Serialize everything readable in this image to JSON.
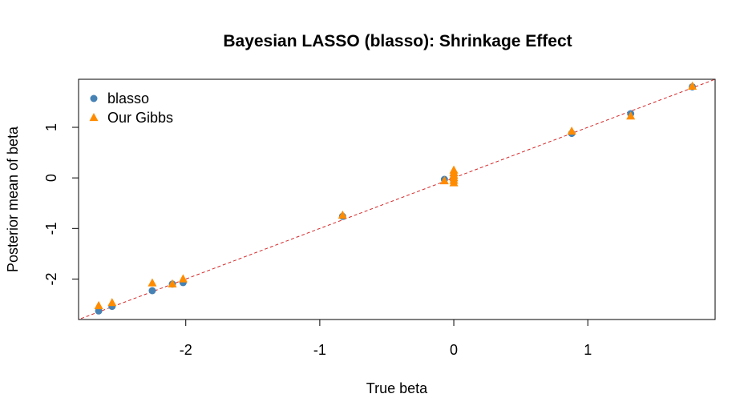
{
  "chart_data": {
    "type": "scatter",
    "title": "Bayesian LASSO (blasso): Shrinkage Effect",
    "xlabel": "True beta",
    "ylabel": "Posterior mean of beta",
    "xlim": [
      -2.8,
      1.95
    ],
    "ylim": [
      -2.8,
      1.95
    ],
    "x_ticks": [
      -2,
      -1,
      0,
      1
    ],
    "y_ticks": [
      -2,
      -1,
      0,
      1
    ],
    "x_tick_labels": [
      "-2",
      "-1",
      "0",
      "1"
    ],
    "y_tick_labels": [
      "-2",
      "-1",
      "0",
      "1"
    ],
    "grid": false,
    "legend_position": "top-left",
    "reference_line": {
      "type": "identity",
      "slope": 1,
      "intercept": 0,
      "color": "#d62728",
      "style": "dashed"
    },
    "series": [
      {
        "name": "blasso",
        "marker": "circle",
        "color": "#4682B4",
        "points": [
          [
            -2.65,
            -2.63
          ],
          [
            -2.55,
            -2.54
          ],
          [
            -2.25,
            -2.23
          ],
          [
            -2.1,
            -2.1
          ],
          [
            -2.02,
            -2.07
          ],
          [
            -0.83,
            -0.76
          ],
          [
            -0.07,
            -0.03
          ],
          [
            0.0,
            -0.05
          ],
          [
            0.0,
            0.0
          ],
          [
            0.0,
            0.05
          ],
          [
            0.88,
            0.88
          ],
          [
            1.32,
            1.27
          ],
          [
            1.78,
            1.8
          ]
        ]
      },
      {
        "name": "Our Gibbs",
        "marker": "triangle",
        "color": "#FF8C00",
        "points": [
          [
            -2.65,
            -2.53
          ],
          [
            -2.55,
            -2.47
          ],
          [
            -2.25,
            -2.08
          ],
          [
            -2.1,
            -2.1
          ],
          [
            -2.02,
            -2.0
          ],
          [
            -0.83,
            -0.74
          ],
          [
            -0.07,
            -0.06
          ],
          [
            0.0,
            -0.1
          ],
          [
            0.0,
            -0.05
          ],
          [
            0.0,
            0.0
          ],
          [
            0.0,
            0.05
          ],
          [
            0.0,
            0.1
          ],
          [
            0.0,
            0.15
          ],
          [
            0.88,
            0.92
          ],
          [
            1.32,
            1.22
          ],
          [
            1.78,
            1.81
          ]
        ]
      }
    ]
  }
}
